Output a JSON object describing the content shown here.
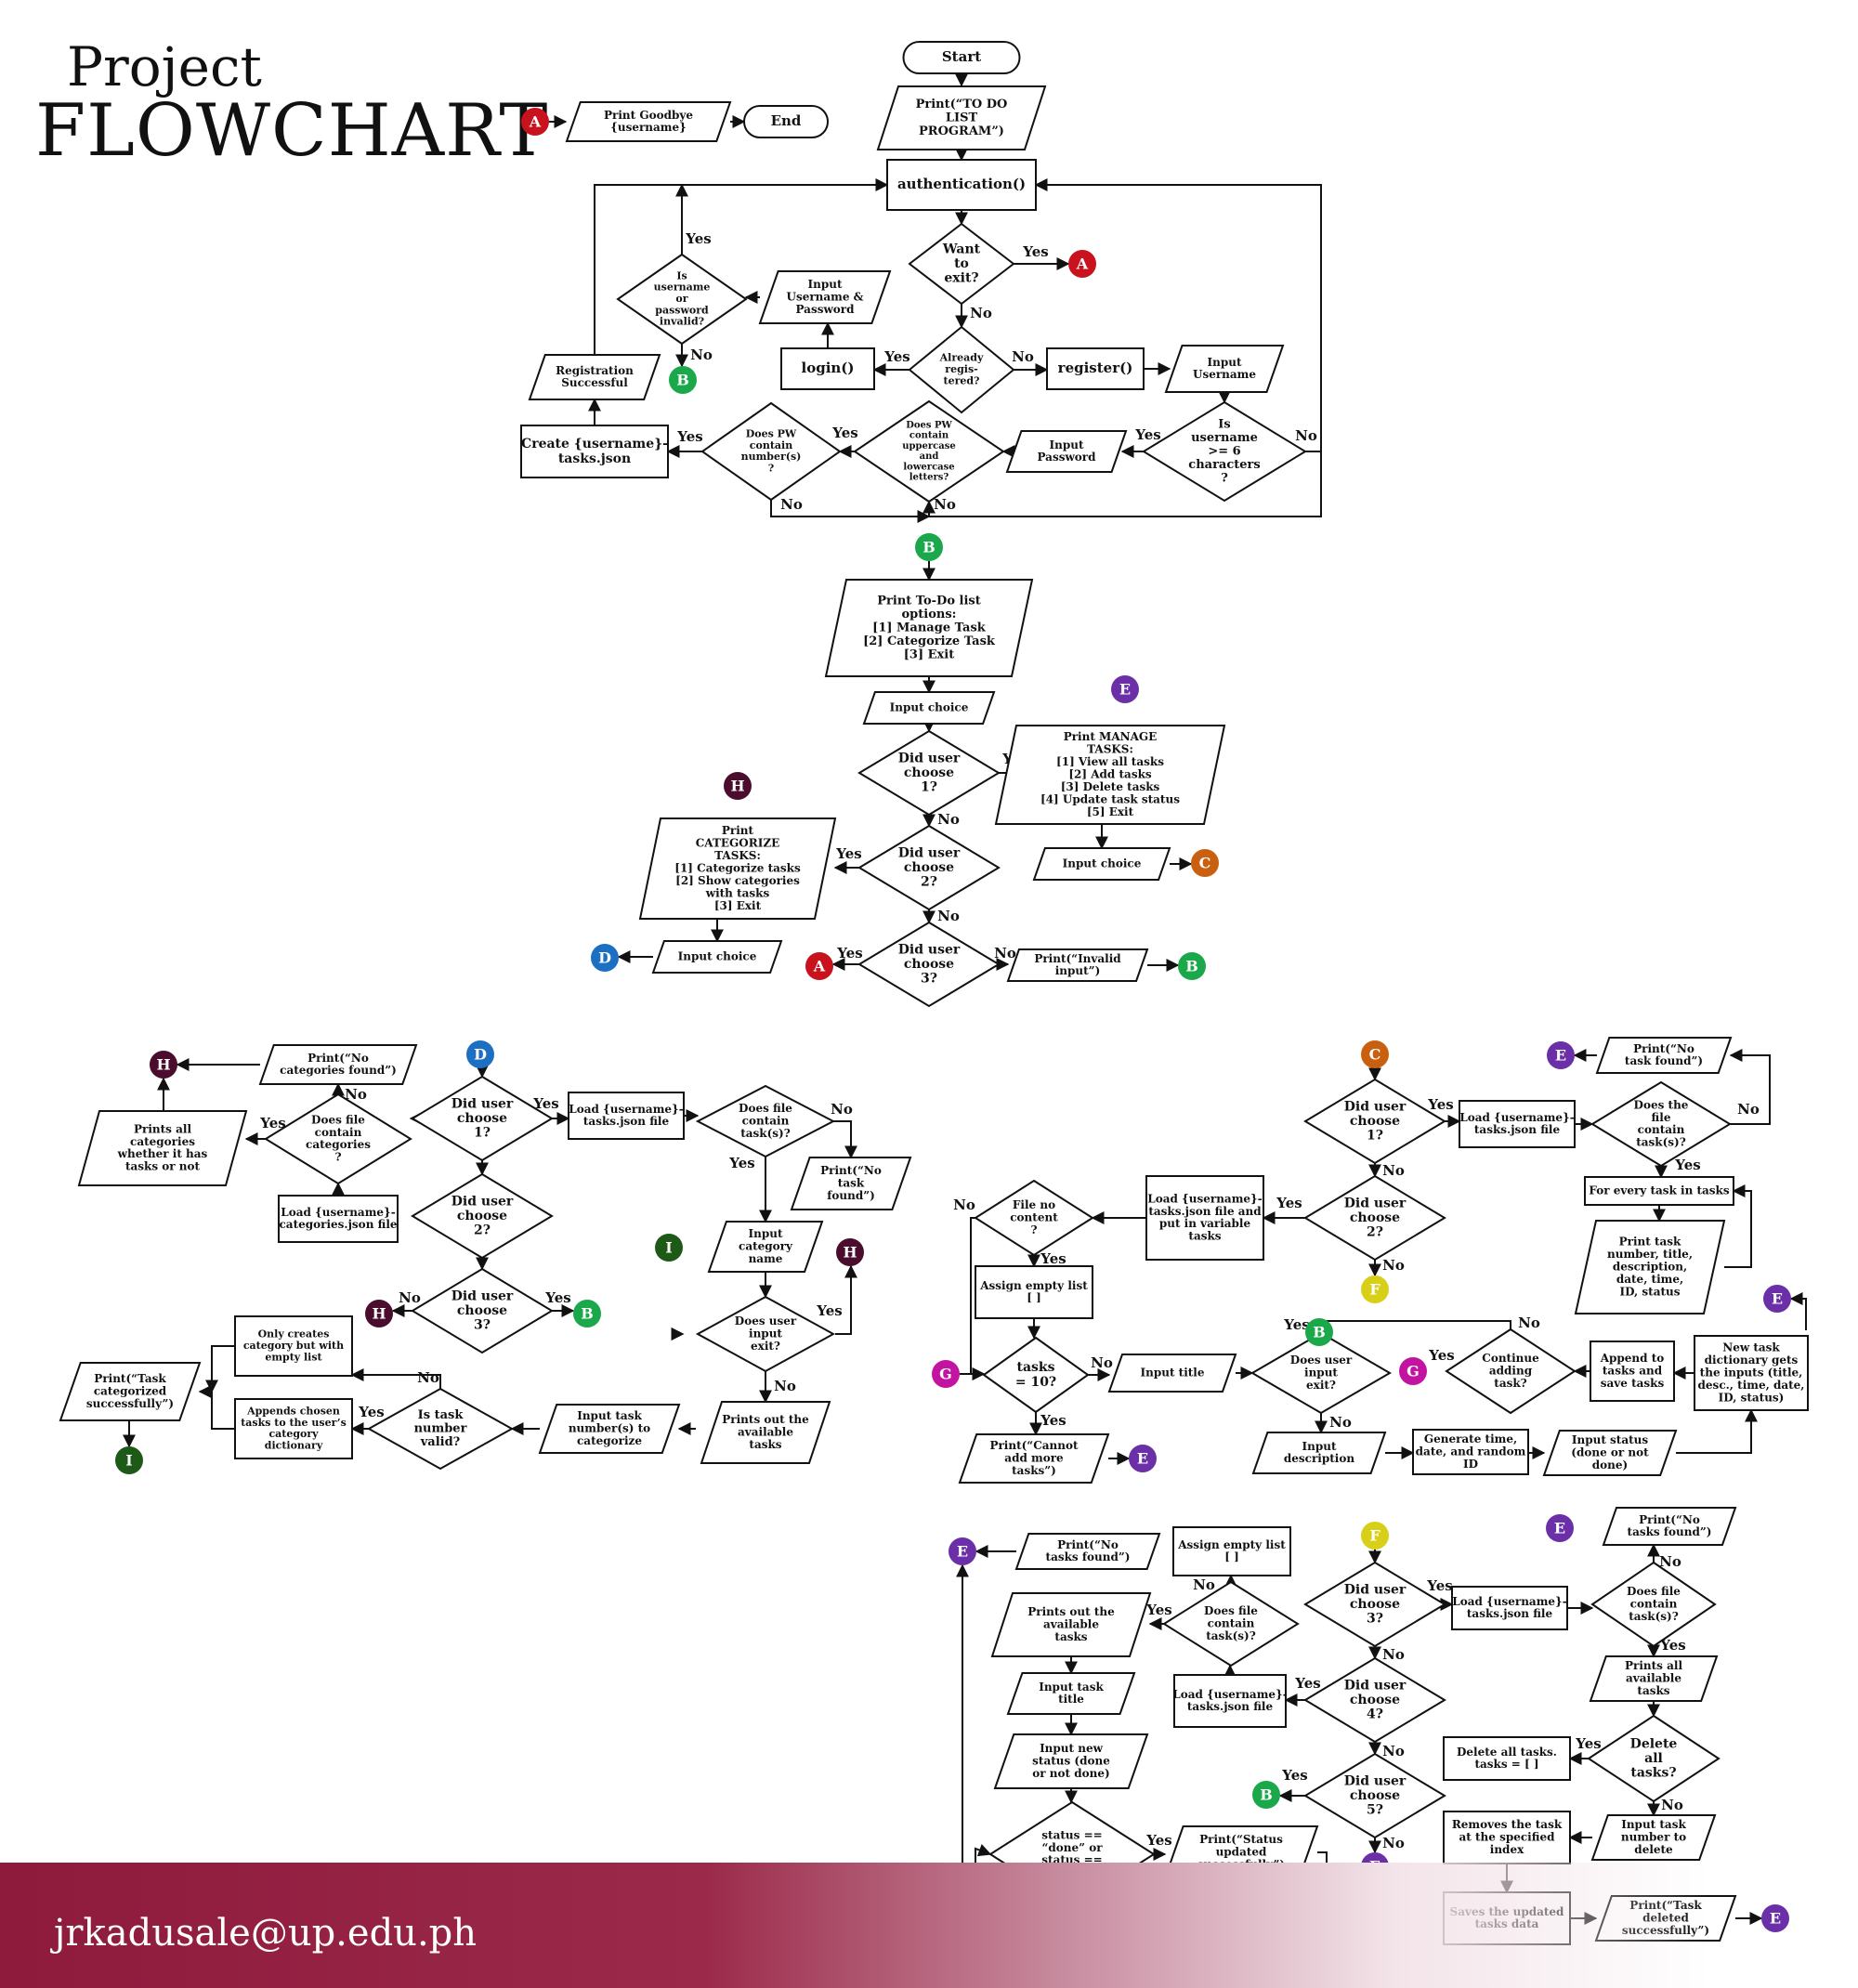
{
  "title": {
    "line1": "Project",
    "line2": "FLOWCHART"
  },
  "footer": {
    "email": "jrkadusale@up.edu.ph"
  },
  "colors": {
    "A": "#c8121e",
    "B": "#1aa84a",
    "C": "#c8600f",
    "D": "#1d6fc1",
    "E": "#6b2fa8",
    "F": "#d8d018",
    "G": "#c214a0",
    "H": "#4a0d2e",
    "I": "#1d5a18",
    "footer": "#8e1a3c"
  },
  "nodes": [
    {
      "id": "start",
      "shape": "term",
      "lines": [
        "Start"
      ]
    },
    {
      "id": "print_title",
      "shape": "para",
      "lines": [
        "Print(“TO DO",
        "LIST",
        "PROGRAM”)"
      ]
    },
    {
      "id": "auth",
      "shape": "rect",
      "lines": [
        "authentication()"
      ]
    },
    {
      "id": "want_exit",
      "shape": "dia",
      "lines": [
        "Want",
        "to",
        "exit?"
      ]
    },
    {
      "id": "already_reg",
      "shape": "dia",
      "lines": [
        "Already",
        "regis-",
        "tered?"
      ]
    },
    {
      "id": "login",
      "shape": "rect",
      "lines": [
        "login()"
      ]
    },
    {
      "id": "register",
      "shape": "rect",
      "lines": [
        "register()"
      ]
    },
    {
      "id": "in_userpass",
      "shape": "para",
      "lines": [
        "Input",
        "Username &",
        "Password"
      ]
    },
    {
      "id": "invalid",
      "shape": "dia",
      "lines": [
        "Is",
        "username",
        "or",
        "password",
        "invalid?"
      ]
    },
    {
      "id": "in_user",
      "shape": "para",
      "lines": [
        "Input",
        "Username"
      ]
    },
    {
      "id": "user_len",
      "shape": "dia",
      "lines": [
        "Is",
        "username",
        ">= 6",
        "characters",
        "?"
      ]
    },
    {
      "id": "in_pw",
      "shape": "para",
      "lines": [
        "Input",
        "Password"
      ]
    },
    {
      "id": "pw_case",
      "shape": "dia",
      "lines": [
        "Does PW",
        "contain",
        "uppercase",
        "and",
        "lowercase",
        "letters?"
      ]
    },
    {
      "id": "pw_num",
      "shape": "dia",
      "lines": [
        "Does PW",
        "contain",
        "number(s)",
        "?"
      ]
    },
    {
      "id": "create_json",
      "shape": "rect",
      "lines": [
        "Create {username}-",
        "tasks.json"
      ]
    },
    {
      "id": "reg_ok",
      "shape": "para",
      "lines": [
        "Registration",
        "Successful"
      ]
    },
    {
      "id": "goodbye",
      "shape": "para",
      "lines": [
        "Print Goodbye",
        "{username}"
      ]
    },
    {
      "id": "end",
      "shape": "term",
      "lines": [
        "End"
      ]
    },
    {
      "id": "menu",
      "shape": "para",
      "lines": [
        "Print To-Do list",
        "options:",
        "[1] Manage Task",
        "[2] Categorize Task",
        "[3] Exit"
      ]
    },
    {
      "id": "menu_in",
      "shape": "para",
      "lines": [
        "Input choice"
      ]
    },
    {
      "id": "m1",
      "shape": "dia",
      "lines": [
        "Did user",
        "choose",
        "1?"
      ]
    },
    {
      "id": "m2",
      "shape": "dia",
      "lines": [
        "Did user",
        "choose",
        "2?"
      ]
    },
    {
      "id": "m3",
      "shape": "dia",
      "lines": [
        "Did user",
        "choose",
        "3?"
      ]
    },
    {
      "id": "invalid_in",
      "shape": "para",
      "lines": [
        "Print(“Invalid",
        "input”)"
      ]
    },
    {
      "id": "manage_menu",
      "shape": "para",
      "lines": [
        "Print MANAGE",
        "TASKS:",
        "[1] View all tasks",
        "[2] Add tasks",
        "[3] Delete tasks",
        "[4] Update task status",
        "[5] Exit"
      ]
    },
    {
      "id": "manage_in",
      "shape": "para",
      "lines": [
        "Input choice"
      ]
    },
    {
      "id": "cat_menu",
      "shape": "para",
      "lines": [
        "Print",
        "CATEGORIZE",
        "TASKS:",
        "[1] Categorize tasks",
        "[2] Show categories",
        "with tasks",
        "[3] Exit"
      ]
    },
    {
      "id": "cat_in",
      "shape": "para",
      "lines": [
        "Input choice"
      ]
    },
    {
      "id": "d1",
      "shape": "dia",
      "lines": [
        "Did user",
        "choose",
        "1?"
      ]
    },
    {
      "id": "d2",
      "shape": "dia",
      "lines": [
        "Did user",
        "choose",
        "2?"
      ]
    },
    {
      "id": "d3",
      "shape": "dia",
      "lines": [
        "Did user",
        "choose",
        "3?"
      ]
    },
    {
      "id": "d_load",
      "shape": "rect",
      "lines": [
        "Load {username}-",
        "tasks.json file"
      ]
    },
    {
      "id": "d_has",
      "shape": "dia",
      "lines": [
        "Does file",
        "contain",
        "task(s)?"
      ]
    },
    {
      "id": "d_notask",
      "shape": "para",
      "lines": [
        "Print(“No",
        "task",
        "found”)"
      ]
    },
    {
      "id": "d_in_cat",
      "shape": "para",
      "lines": [
        "Input",
        "category",
        "name"
      ]
    },
    {
      "id": "d_exit",
      "shape": "dia",
      "lines": [
        "Does user",
        "input",
        "exit?"
      ]
    },
    {
      "id": "d_printall",
      "shape": "para",
      "lines": [
        "Prints out the",
        "available",
        "tasks"
      ]
    },
    {
      "id": "d_in_num",
      "shape": "para",
      "lines": [
        "Input task",
        "number(s) to",
        "categorize"
      ]
    },
    {
      "id": "d_valid",
      "shape": "dia",
      "lines": [
        "Is task",
        "number",
        "valid?"
      ]
    },
    {
      "id": "d_append",
      "shape": "rect",
      "lines": [
        "Appends chosen",
        "tasks to the user’s",
        "category",
        "dictionary"
      ]
    },
    {
      "id": "d_onlycat",
      "shape": "rect",
      "lines": [
        "Only creates",
        "category but with",
        "empty list"
      ]
    },
    {
      "id": "d_catok",
      "shape": "para",
      "lines": [
        "Print(“Task",
        "categorized",
        "successfully”)"
      ]
    },
    {
      "id": "d_loadcat",
      "shape": "rect",
      "lines": [
        "Load {username}-",
        "categories.json file"
      ]
    },
    {
      "id": "d_hascat",
      "shape": "dia",
      "lines": [
        "Does file",
        "contain",
        "categories",
        "?"
      ]
    },
    {
      "id": "d_nocat",
      "shape": "para",
      "lines": [
        "Print(“No",
        "categories found”)"
      ]
    },
    {
      "id": "d_printcat",
      "shape": "para",
      "lines": [
        "Prints all",
        "categories",
        "whether it has",
        "tasks or not"
      ]
    },
    {
      "id": "c1",
      "shape": "dia",
      "lines": [
        "Did user",
        "choose",
        "1?"
      ]
    },
    {
      "id": "c_load",
      "shape": "rect",
      "lines": [
        "Load {username}-",
        "tasks.json file"
      ]
    },
    {
      "id": "c_has",
      "shape": "dia",
      "lines": [
        "Does the",
        "file",
        "contain",
        "task(s)?"
      ]
    },
    {
      "id": "c_notask",
      "shape": "para",
      "lines": [
        "Print(“No",
        "task found”)"
      ]
    },
    {
      "id": "c_every",
      "shape": "rect",
      "lines": [
        "For every task in tasks"
      ]
    },
    {
      "id": "c_print",
      "shape": "para",
      "lines": [
        "Print task",
        "number, title,",
        "description,",
        "date, time,",
        "ID, status"
      ]
    },
    {
      "id": "c2",
      "shape": "dia",
      "lines": [
        "Did user",
        "choose",
        "2?"
      ]
    },
    {
      "id": "c_load2",
      "shape": "rect",
      "lines": [
        "Load {username}-",
        "tasks.json file and",
        "put in variable",
        "tasks"
      ]
    },
    {
      "id": "c_nocontent",
      "shape": "dia",
      "lines": [
        "File no",
        "content",
        "?"
      ]
    },
    {
      "id": "c_empty",
      "shape": "rect",
      "lines": [
        "Assign empty list",
        "[ ]"
      ]
    },
    {
      "id": "c_ten",
      "shape": "dia",
      "lines": [
        "tasks",
        "= 10?"
      ]
    },
    {
      "id": "c_cannot",
      "shape": "para",
      "lines": [
        "Print(“Cannot",
        "add more",
        "tasks”)"
      ]
    },
    {
      "id": "c_title",
      "shape": "para",
      "lines": [
        "Input title"
      ]
    },
    {
      "id": "c_exit",
      "shape": "dia",
      "lines": [
        "Does user",
        "input",
        "exit?"
      ]
    },
    {
      "id": "c_desc",
      "shape": "para",
      "lines": [
        "Input",
        "description"
      ]
    },
    {
      "id": "c_gen",
      "shape": "rect",
      "lines": [
        "Generate time,",
        "date, and random",
        "ID"
      ]
    },
    {
      "id": "c_status",
      "shape": "para",
      "lines": [
        "Input status",
        "(done or not",
        "done)"
      ]
    },
    {
      "id": "c_newdict",
      "shape": "rect",
      "lines": [
        "New task",
        "dictionary gets",
        "the inputs (title,",
        "desc., time, date,",
        "ID, status)"
      ]
    },
    {
      "id": "c_append",
      "shape": "rect",
      "lines": [
        "Append to",
        "tasks and",
        "save tasks"
      ]
    },
    {
      "id": "c_cont",
      "shape": "dia",
      "lines": [
        "Continue",
        "adding",
        "task?"
      ]
    },
    {
      "id": "f3",
      "shape": "dia",
      "lines": [
        "Did user",
        "choose",
        "3?"
      ]
    },
    {
      "id": "f_load",
      "shape": "rect",
      "lines": [
        "Load {username}-",
        "tasks.json file"
      ]
    },
    {
      "id": "f_has",
      "shape": "dia",
      "lines": [
        "Does file",
        "contain",
        "task(s)?"
      ]
    },
    {
      "id": "f_notask",
      "shape": "para",
      "lines": [
        "Print(“No",
        "tasks found”)"
      ]
    },
    {
      "id": "f_printall",
      "shape": "para",
      "lines": [
        "Prints all",
        "available",
        "tasks"
      ]
    },
    {
      "id": "f_delall",
      "shape": "dia",
      "lines": [
        "Delete",
        "all",
        "tasks?"
      ]
    },
    {
      "id": "f_clear",
      "shape": "rect",
      "lines": [
        "Delete all tasks.",
        "tasks = [ ]"
      ]
    },
    {
      "id": "f_innum",
      "shape": "para",
      "lines": [
        "Input task",
        "number to",
        "delete"
      ]
    },
    {
      "id": "f_remove",
      "shape": "rect",
      "lines": [
        "Removes the task",
        "at the specified",
        "index"
      ]
    },
    {
      "id": "f_save",
      "shape": "rect",
      "lines": [
        "Saves the updated",
        "tasks data"
      ]
    },
    {
      "id": "f_delok",
      "shape": "para",
      "lines": [
        "Print(“Task",
        "deleted",
        "successfully”)"
      ]
    },
    {
      "id": "f4",
      "shape": "dia",
      "lines": [
        "Did user",
        "choose",
        "4?"
      ]
    },
    {
      "id": "f5",
      "shape": "dia",
      "lines": [
        "Did user",
        "choose",
        "5?"
      ]
    },
    {
      "id": "u_load",
      "shape": "rect",
      "lines": [
        "Load {username}-",
        "tasks.json file"
      ]
    },
    {
      "id": "u_has",
      "shape": "dia",
      "lines": [
        "Does file",
        "contain",
        "task(s)?"
      ]
    },
    {
      "id": "u_empty",
      "shape": "rect",
      "lines": [
        "Assign empty list",
        "[ ]"
      ]
    },
    {
      "id": "u_notask",
      "shape": "para",
      "lines": [
        "Print(“No",
        "tasks found”)"
      ]
    },
    {
      "id": "u_print",
      "shape": "para",
      "lines": [
        "Prints out the",
        "available",
        "tasks"
      ]
    },
    {
      "id": "u_title",
      "shape": "para",
      "lines": [
        "Input task",
        "title"
      ]
    },
    {
      "id": "u_newstatus",
      "shape": "para",
      "lines": [
        "Input new",
        "status (done",
        "or not done)"
      ]
    },
    {
      "id": "u_check",
      "shape": "dia",
      "lines": [
        "status ==",
        "“done” or",
        "status ==",
        "“not done”?"
      ]
    },
    {
      "id": "u_ok",
      "shape": "para",
      "lines": [
        "Print(“Status",
        "updated",
        "successfully”)"
      ]
    }
  ],
  "connectors": [
    {
      "id": "cA1",
      "letter": "A"
    },
    {
      "id": "cA2",
      "letter": "A"
    },
    {
      "id": "cA3",
      "letter": "A"
    },
    {
      "id": "cB1",
      "letter": "B"
    },
    {
      "id": "cB2",
      "letter": "B"
    },
    {
      "id": "cB3",
      "letter": "B"
    },
    {
      "id": "cB4",
      "letter": "B"
    },
    {
      "id": "cB5",
      "letter": "B"
    },
    {
      "id": "cB6",
      "letter": "B"
    },
    {
      "id": "cC1",
      "letter": "C"
    },
    {
      "id": "cC2",
      "letter": "C"
    },
    {
      "id": "cD1",
      "letter": "D"
    },
    {
      "id": "cD2",
      "letter": "D"
    },
    {
      "id": "cE1",
      "letter": "E"
    },
    {
      "id": "cE2",
      "letter": "E"
    },
    {
      "id": "cE3",
      "letter": "E"
    },
    {
      "id": "cE4",
      "letter": "E"
    },
    {
      "id": "cE5",
      "letter": "E"
    },
    {
      "id": "cE6",
      "letter": "E"
    },
    {
      "id": "cE7",
      "letter": "E"
    },
    {
      "id": "cE8",
      "letter": "E"
    },
    {
      "id": "cF1",
      "letter": "F"
    },
    {
      "id": "cF2",
      "letter": "F"
    },
    {
      "id": "cG1",
      "letter": "G"
    },
    {
      "id": "cG2",
      "letter": "G"
    },
    {
      "id": "cH1",
      "letter": "H"
    },
    {
      "id": "cH2",
      "letter": "H"
    },
    {
      "id": "cH3",
      "letter": "H"
    },
    {
      "id": "cH4",
      "letter": "H"
    },
    {
      "id": "cI1",
      "letter": "I"
    },
    {
      "id": "cI2",
      "letter": "I"
    }
  ],
  "edge_labels": {
    "yes": "Yes",
    "no": "No"
  }
}
